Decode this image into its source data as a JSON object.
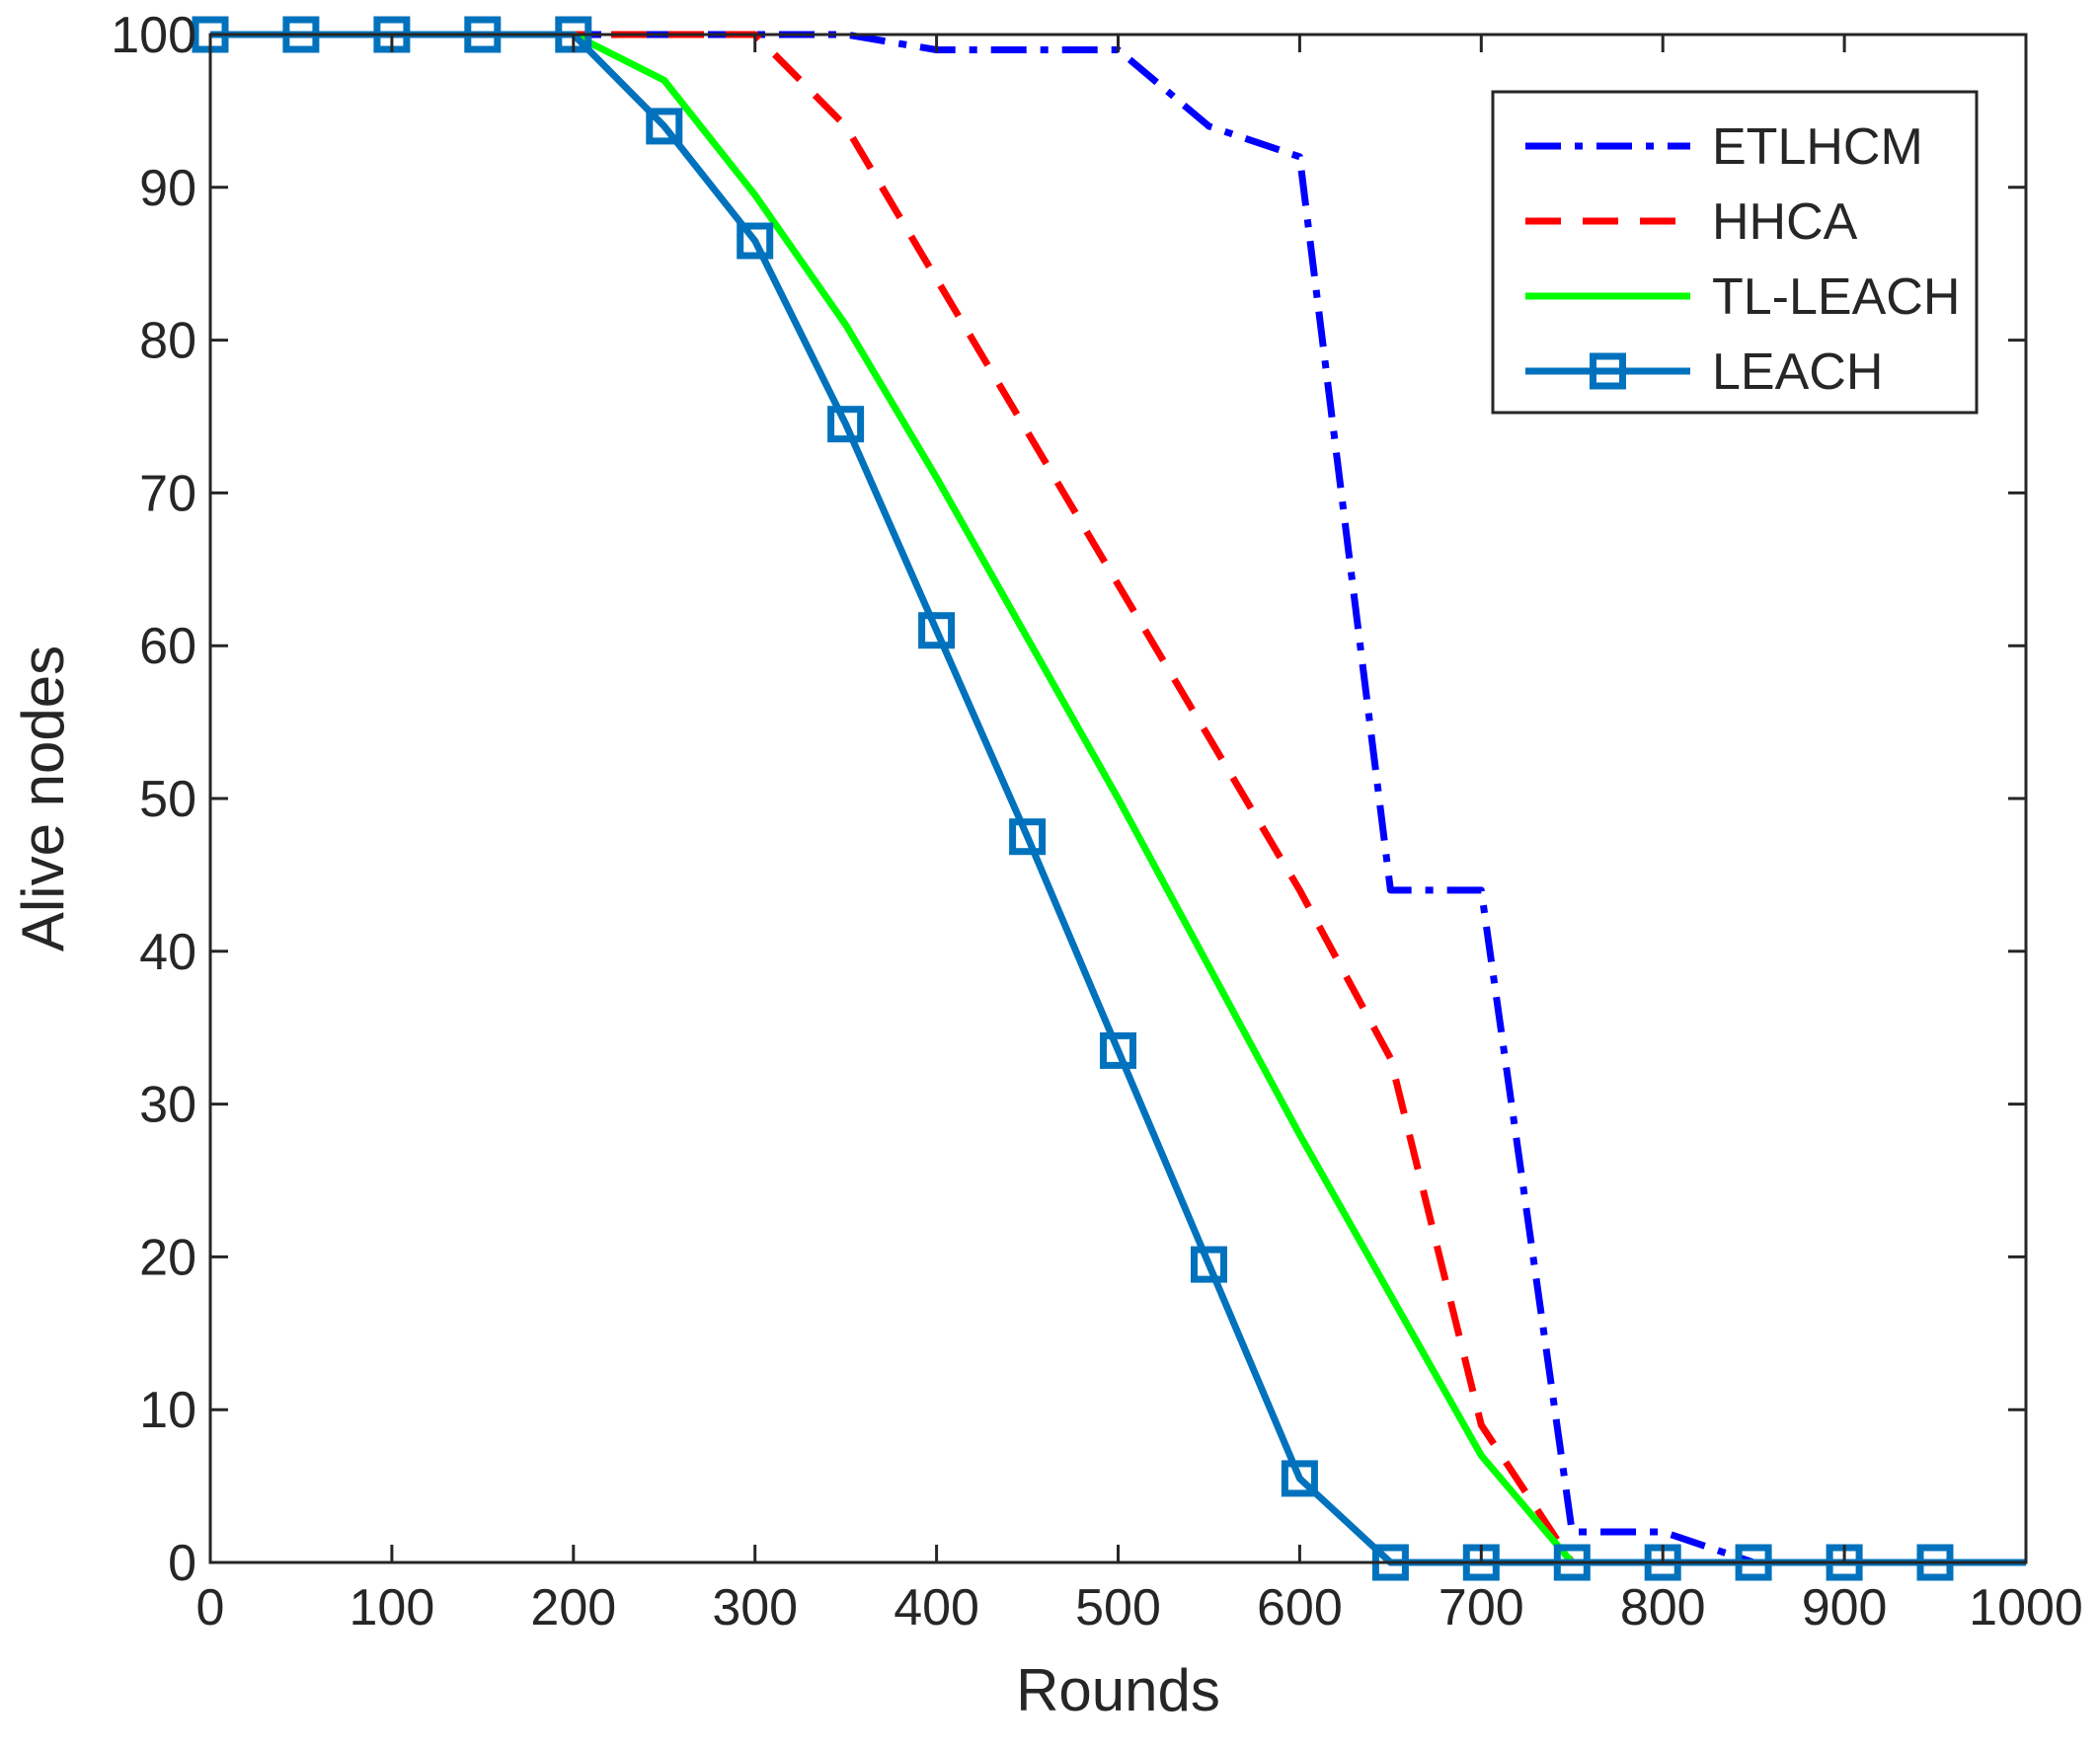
{
  "chart_data": {
    "type": "line",
    "title": "",
    "xlabel": "Rounds",
    "ylabel": "Alive nodes",
    "xlim": [
      0,
      1000
    ],
    "ylim": [
      0,
      100
    ],
    "xticks": [
      0,
      100,
      200,
      300,
      400,
      500,
      600,
      700,
      800,
      900,
      1000
    ],
    "yticks": [
      0,
      10,
      20,
      30,
      40,
      50,
      60,
      70,
      80,
      90,
      100
    ],
    "grid": false,
    "legend_position": "top-right",
    "series": [
      {
        "name": "ETLHCM",
        "color": "#0000ff",
        "style": "dash-dot",
        "marker": "none",
        "x": [
          0,
          50,
          100,
          150,
          200,
          250,
          300,
          350,
          400,
          450,
          500,
          550,
          600,
          650,
          700,
          750,
          800,
          850,
          900,
          950,
          1000
        ],
        "y": [
          100,
          100,
          100,
          100,
          100,
          100,
          100,
          100,
          99,
          99,
          99,
          94,
          92,
          44,
          44,
          2,
          2,
          0,
          0,
          0,
          0
        ]
      },
      {
        "name": "HHCA",
        "color": "#ff0000",
        "style": "dashed",
        "marker": "none",
        "x": [
          0,
          50,
          100,
          150,
          200,
          250,
          300,
          350,
          400,
          450,
          500,
          550,
          600,
          650,
          700,
          750,
          800,
          850,
          900,
          950,
          1000
        ],
        "y": [
          100,
          100,
          100,
          100,
          100,
          100,
          100,
          94,
          84,
          74,
          64,
          54,
          44,
          33,
          9,
          0,
          0,
          0,
          0,
          0,
          0
        ]
      },
      {
        "name": "TL-LEACH",
        "color": "#00ff00",
        "style": "solid",
        "marker": "none",
        "x": [
          0,
          50,
          100,
          150,
          200,
          250,
          300,
          350,
          400,
          450,
          500,
          550,
          600,
          650,
          700,
          750,
          800,
          850,
          900,
          950,
          1000
        ],
        "y": [
          100,
          100,
          100,
          100,
          100,
          97,
          89.5,
          81,
          71,
          60.5,
          50,
          39,
          28,
          17.5,
          7,
          0,
          0,
          0,
          0,
          0,
          0
        ]
      },
      {
        "name": "LEACH",
        "color": "#0072bd",
        "style": "solid",
        "marker": "square",
        "x": [
          0,
          50,
          100,
          150,
          200,
          250,
          300,
          350,
          400,
          450,
          500,
          550,
          600,
          650,
          700,
          750,
          800,
          850,
          900,
          950,
          1000
        ],
        "y": [
          100,
          100,
          100,
          100,
          100,
          94,
          86.5,
          74.5,
          61,
          47.5,
          33.5,
          19.5,
          5.5,
          0,
          0,
          0,
          0,
          0,
          0,
          0,
          0
        ],
        "marker_x": [
          0,
          50,
          100,
          150,
          200,
          250,
          300,
          350,
          400,
          450,
          500,
          550,
          600,
          650,
          700,
          750,
          800,
          850,
          900,
          950
        ]
      }
    ]
  }
}
